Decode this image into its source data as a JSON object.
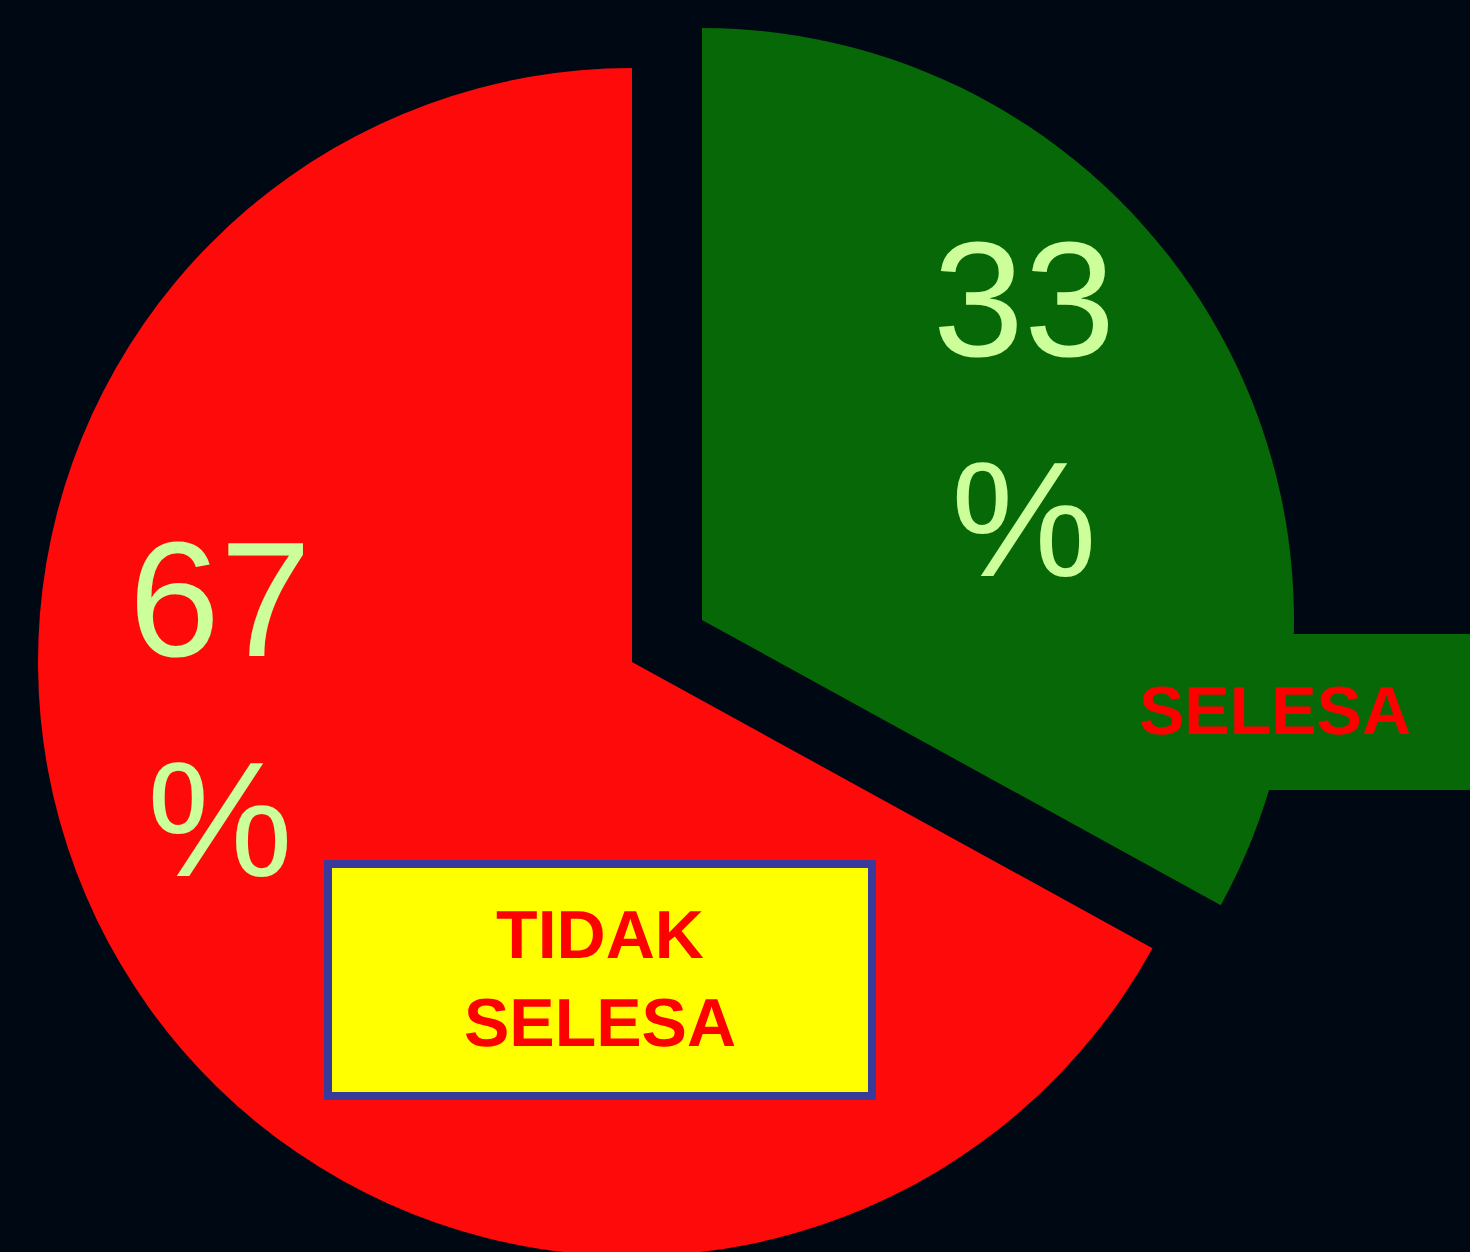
{
  "chart_data": {
    "type": "pie",
    "categories": [
      "SELESA",
      "TIDAK SELESA"
    ],
    "values": [
      33,
      67
    ],
    "colors": [
      "#066806",
      "#ff0a0a"
    ],
    "value_labels": [
      "33 %",
      "67 %"
    ]
  }
}
